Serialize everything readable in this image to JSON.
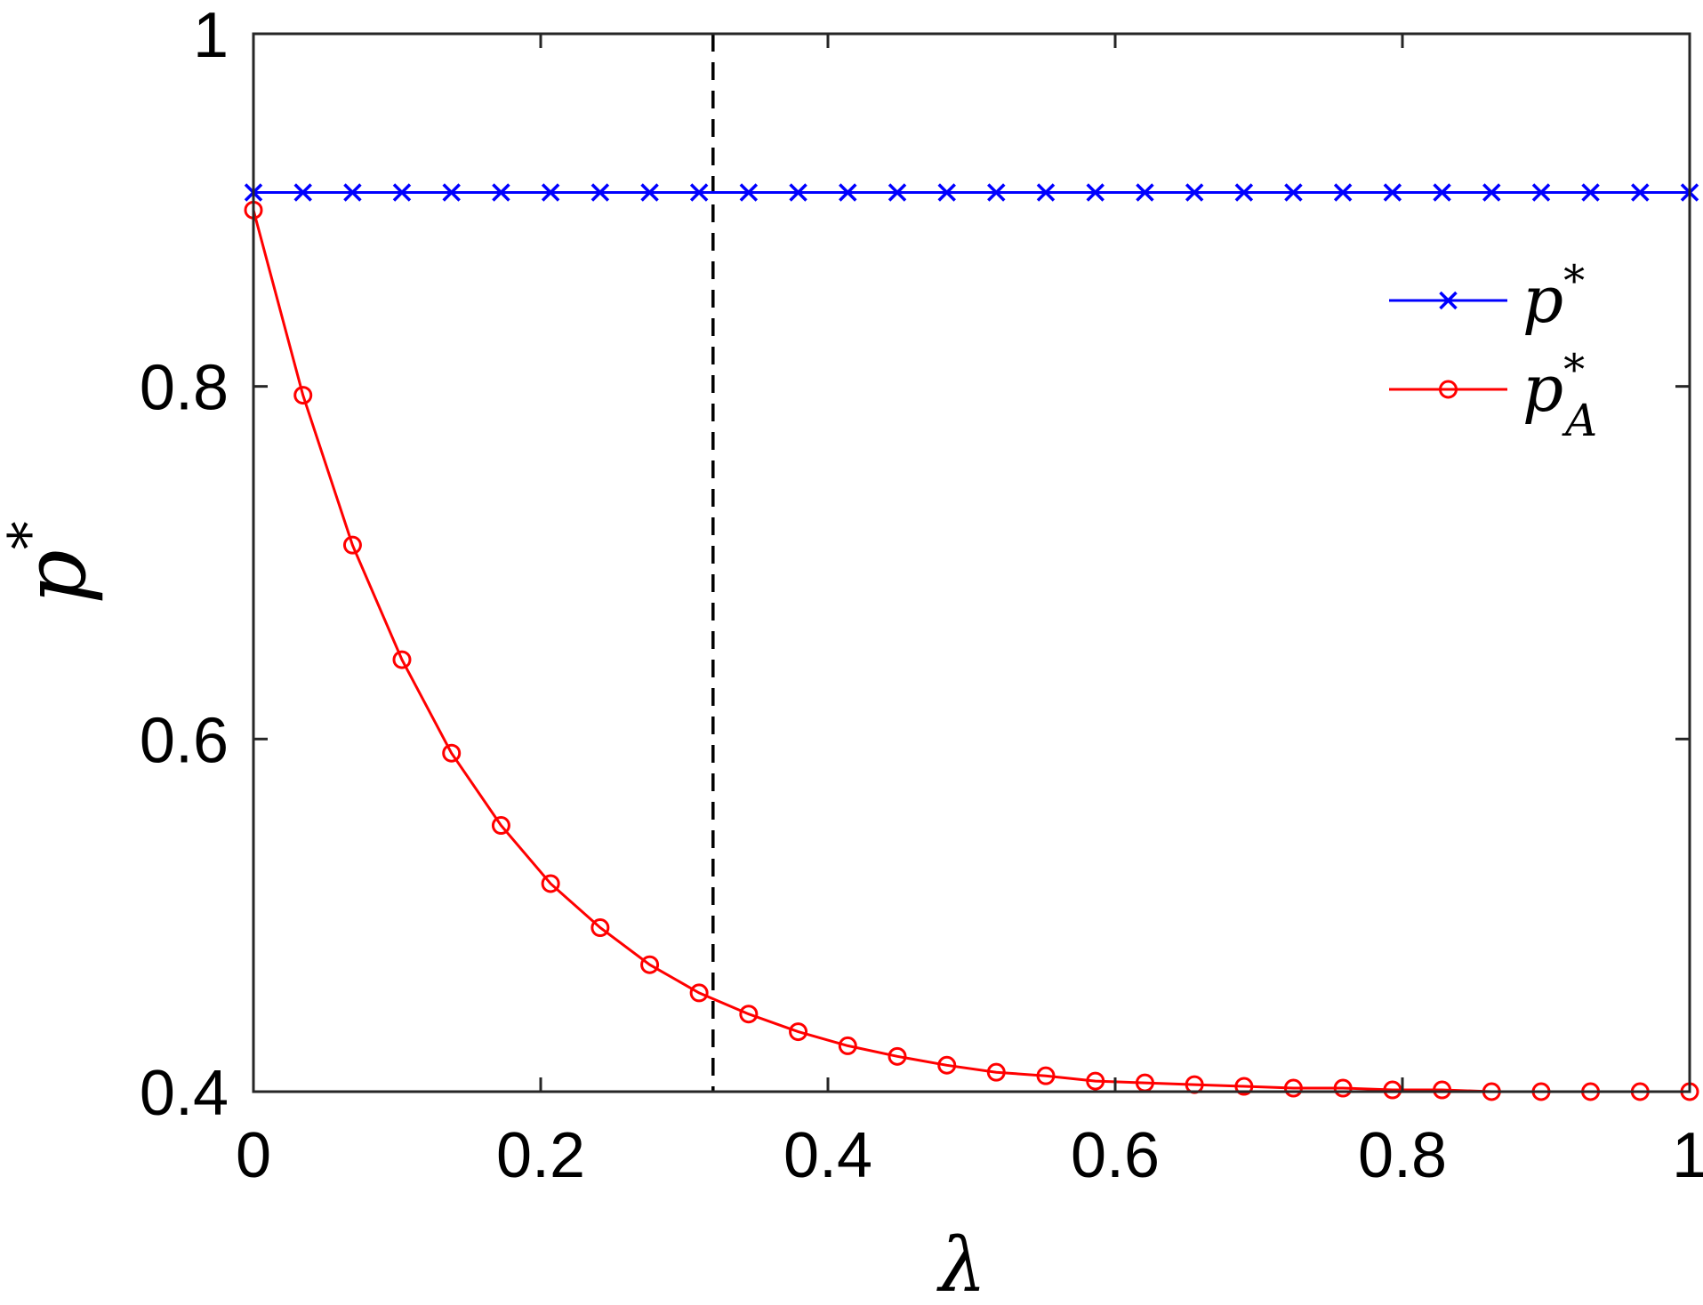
{
  "chart_data": {
    "type": "line",
    "xlabel": "λ",
    "ylabel": {
      "base": "p",
      "sup": "*"
    },
    "xlim": [
      0,
      1
    ],
    "ylim": [
      0.4,
      1
    ],
    "x_ticks": [
      0,
      0.2,
      0.4,
      0.6,
      0.8,
      1
    ],
    "x_tick_labels": [
      "0",
      "0.2",
      "0.4",
      "0.6",
      "0.8",
      "1"
    ],
    "y_ticks": [
      0.4,
      0.6,
      0.8,
      1
    ],
    "y_tick_labels": [
      "0.4",
      "0.6",
      "0.8",
      "1"
    ],
    "grid": false,
    "legend_position": "top-right",
    "reference_line": {
      "type": "vertical",
      "x": 0.32,
      "style": "dashed",
      "color": "#000000"
    },
    "x": [
      0,
      0.0345,
      0.069,
      0.1034,
      0.1379,
      0.1724,
      0.2069,
      0.2414,
      0.2759,
      0.3103,
      0.3448,
      0.3793,
      0.4138,
      0.4483,
      0.4828,
      0.5172,
      0.5517,
      0.5862,
      0.6207,
      0.6552,
      0.6897,
      0.7241,
      0.7586,
      0.7931,
      0.8276,
      0.8621,
      0.8966,
      0.931,
      0.9655,
      1
    ],
    "series": [
      {
        "name": {
          "base": "p",
          "sup": "*",
          "sub": ""
        },
        "marker": "x",
        "color": "#0000ff",
        "values": [
          0.91,
          0.91,
          0.91,
          0.91,
          0.91,
          0.91,
          0.91,
          0.91,
          0.91,
          0.91,
          0.91,
          0.91,
          0.91,
          0.91,
          0.91,
          0.91,
          0.91,
          0.91,
          0.91,
          0.91,
          0.91,
          0.91,
          0.91,
          0.91,
          0.91,
          0.91,
          0.91,
          0.91,
          0.91,
          0.91
        ]
      },
      {
        "name": {
          "base": "p",
          "sup": "*",
          "sub": "A"
        },
        "marker": "circle",
        "color": "#ff0000",
        "values": [
          0.9,
          0.795,
          0.71,
          0.645,
          0.592,
          0.551,
          0.518,
          0.493,
          0.472,
          0.456,
          0.444,
          0.434,
          0.426,
          0.42,
          0.415,
          0.411,
          0.409,
          0.406,
          0.405,
          0.404,
          0.403,
          0.402,
          0.402,
          0.401,
          0.401,
          0.4,
          0.4,
          0.4,
          0.4,
          0.4
        ]
      }
    ]
  }
}
